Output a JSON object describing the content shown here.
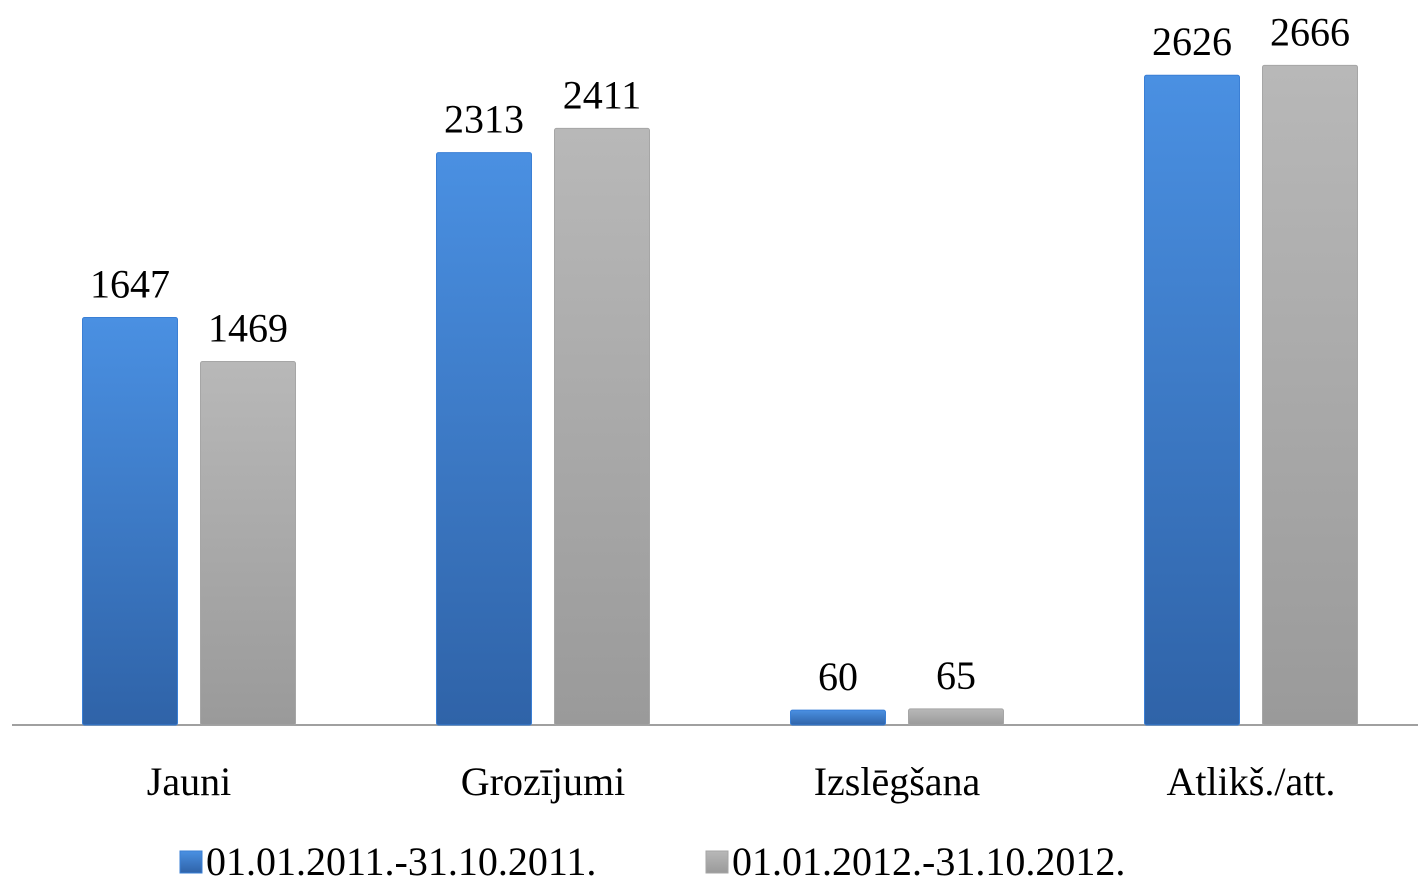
{
  "chart_data": {
    "type": "bar",
    "categories": [
      "Jauni",
      "Grozījumi",
      "Izslēgšana",
      "Atlikš./att."
    ],
    "series": [
      {
        "name": "01.01.2011.-31.10.2011.",
        "color": "#3a7fd5",
        "values": [
          1647,
          2313,
          60,
          2626
        ]
      },
      {
        "name": "01.01.2012.-31.10.2012.",
        "color": "#a6a6a6",
        "values": [
          1469,
          2411,
          65,
          2666
        ]
      }
    ],
    "ylim": [
      0,
      2930
    ],
    "legend": "bottom"
  }
}
